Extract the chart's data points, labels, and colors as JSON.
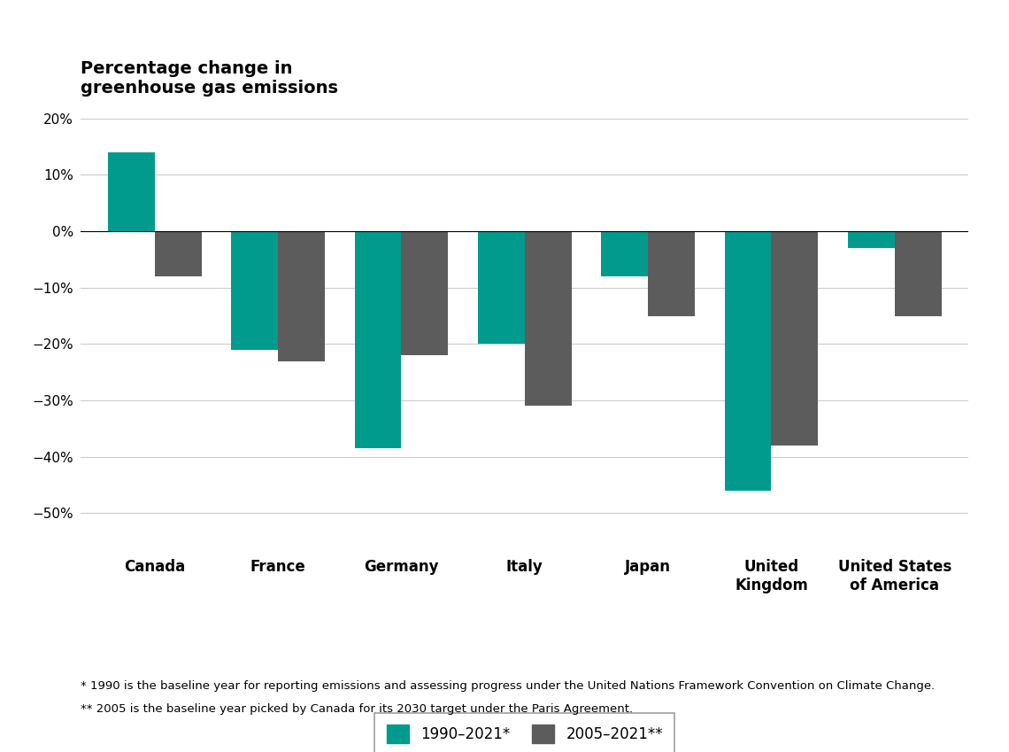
{
  "title": "Percentage change in\ngreenhouse gas emissions",
  "categories": [
    "Canada",
    "France",
    "Germany",
    "Italy",
    "Japan",
    "United\nKingdom",
    "United States\nof America"
  ],
  "series_1990": [
    14.0,
    -21.0,
    -38.5,
    -20.0,
    -8.0,
    -46.0,
    -3.0
  ],
  "series_2005": [
    -8.0,
    -23.0,
    -22.0,
    -31.0,
    -15.0,
    -38.0,
    -15.0
  ],
  "color_1990": "#009B8D",
  "color_2005": "#5C5C5C",
  "legend_label_1990": "1990–2021*",
  "legend_label_2005": "2005–2021**",
  "ylim": [
    -55,
    25
  ],
  "yticks": [
    -50,
    -40,
    -30,
    -20,
    -10,
    0,
    10,
    20
  ],
  "ytick_labels": [
    "−50%",
    "−40%",
    "−30%",
    "−20%",
    "−10%",
    "0%",
    "10%",
    "20%"
  ],
  "footnote_1": "* 1990 is the baseline year for reporting emissions and assessing progress under the United Nations Framework Convention on Climate Change.",
  "footnote_2": "** 2005 is the baseline year picked by Canada for its 2030 target under the Paris Agreement.",
  "background_color": "#FFFFFF",
  "grid_color": "#CCCCCC",
  "bar_width": 0.38
}
